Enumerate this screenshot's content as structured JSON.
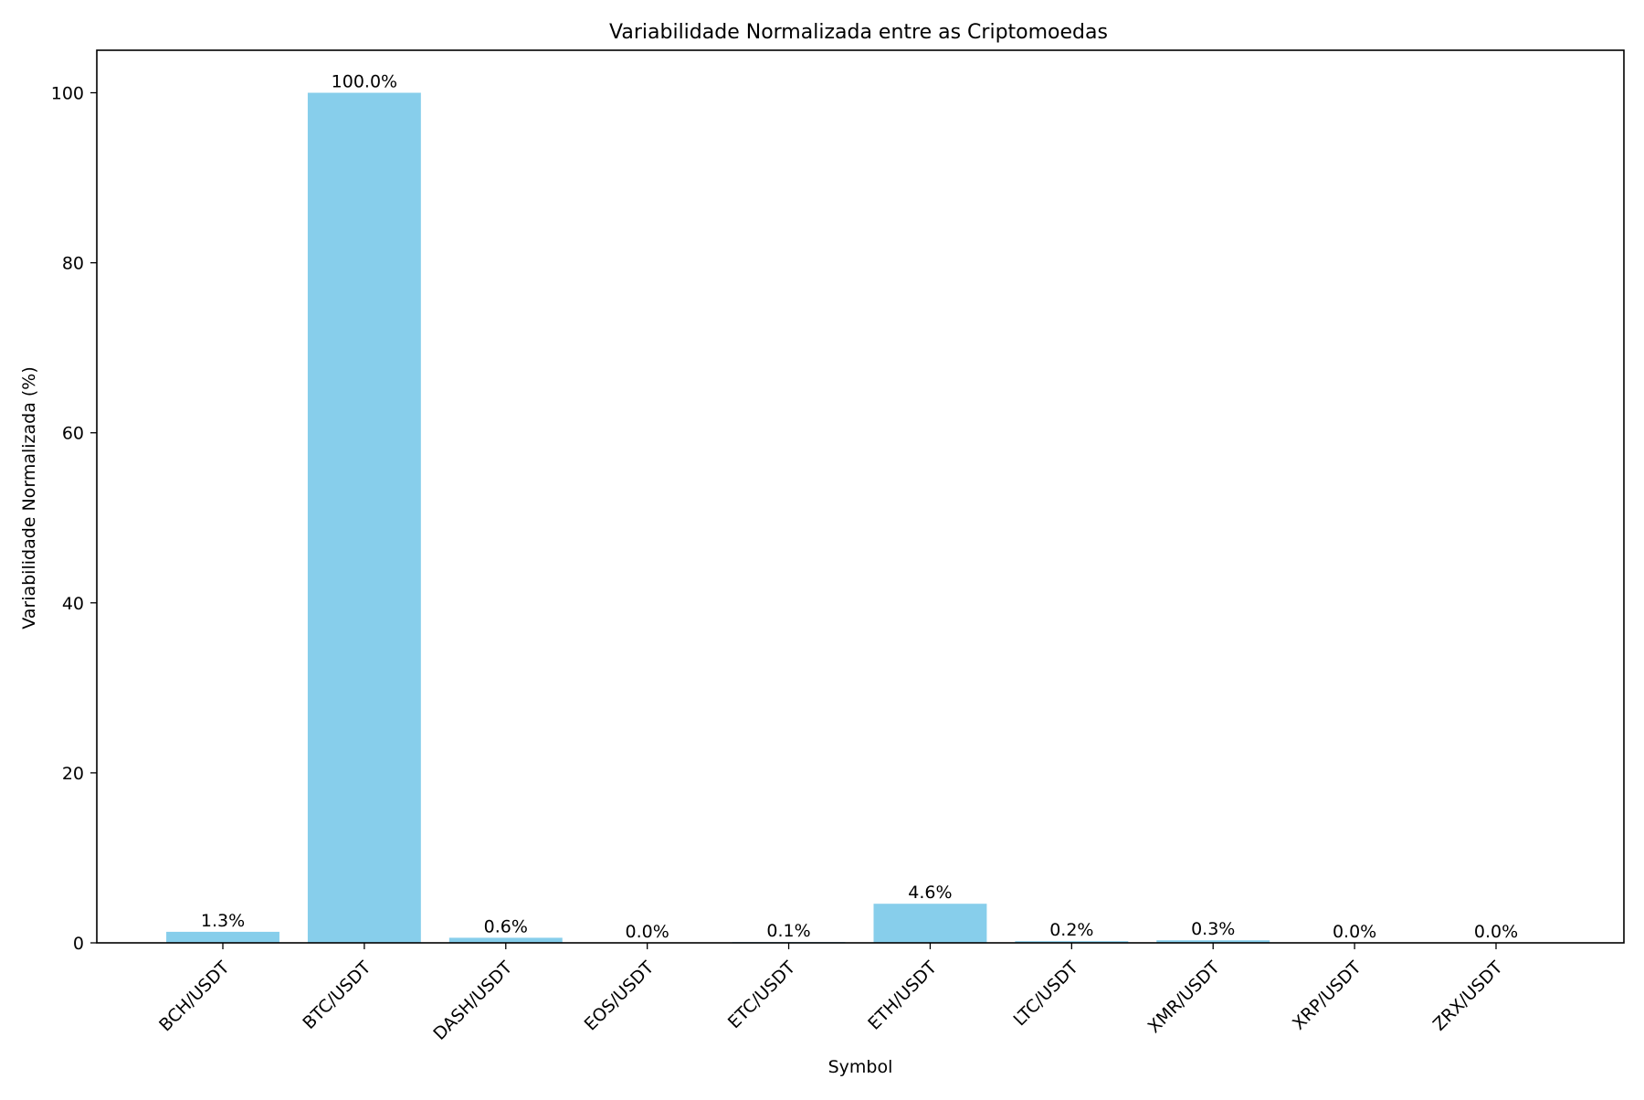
{
  "chart_data": {
    "type": "bar",
    "title": "Variabilidade Normalizada entre as Criptomoedas",
    "xlabel": "Symbol",
    "ylabel": "Variabilidade Normalizada (%)",
    "categories": [
      "BCH/USDT",
      "BTC/USDT",
      "DASH/USDT",
      "EOS/USDT",
      "ETC/USDT",
      "ETH/USDT",
      "LTC/USDT",
      "XMR/USDT",
      "XRP/USDT",
      "ZRX/USDT"
    ],
    "values": [
      1.3,
      100.0,
      0.6,
      0.0,
      0.1,
      4.6,
      0.2,
      0.3,
      0.0,
      0.0
    ],
    "data_labels": [
      "1.3%",
      "100.0%",
      "0.6%",
      "0.0%",
      "0.1%",
      "4.6%",
      "0.2%",
      "0.3%",
      "0.0%",
      "0.0%"
    ],
    "ylim": [
      0,
      105
    ],
    "yticks": [
      0,
      20,
      40,
      60,
      80,
      100
    ],
    "bar_color": "#87CEEB",
    "grid": false,
    "legend": "none"
  }
}
